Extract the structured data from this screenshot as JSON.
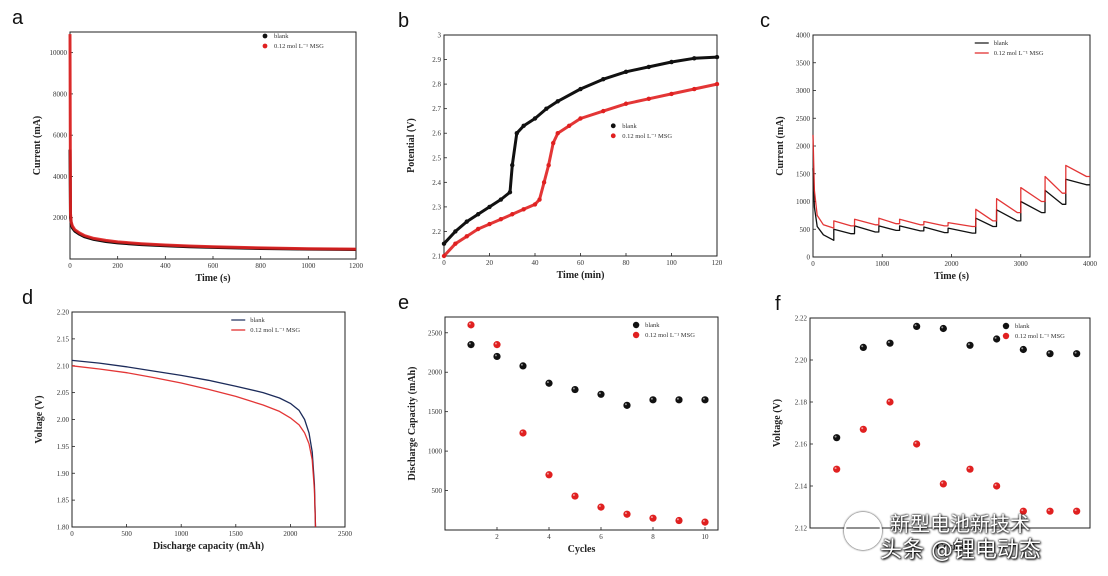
{
  "chart_data": [
    {
      "panel": "a",
      "type": "line",
      "xlabel": "Time (s)",
      "ylabel": "Current (mA)",
      "xlim": [
        0,
        1200
      ],
      "ylim": [
        0,
        11000
      ],
      "xticks": [
        0,
        200,
        400,
        600,
        800,
        1000,
        1200
      ],
      "yticks": [
        2000,
        4000,
        6000,
        8000,
        10000
      ],
      "legend": [
        "blank",
        "0.12 mol L⁻¹ MSG"
      ],
      "legend_position": "top-right",
      "series": [
        {
          "name": "blank",
          "color": "#111111",
          "style": "line",
          "x": [
            0,
            2,
            5,
            10,
            20,
            40,
            60,
            100,
            150,
            200,
            300,
            400,
            500,
            600,
            800,
            1000,
            1200
          ],
          "y": [
            5300,
            2000,
            1700,
            1500,
            1350,
            1200,
            1080,
            950,
            850,
            780,
            700,
            640,
            590,
            560,
            510,
            480,
            460
          ]
        },
        {
          "name": "0.12 mol L⁻¹ MSG",
          "color": "#e02020",
          "style": "line",
          "x": [
            0,
            2,
            5,
            10,
            20,
            40,
            60,
            100,
            150,
            200,
            300,
            400,
            500,
            600,
            800,
            1000,
            1200
          ],
          "y": [
            10900,
            2200,
            1800,
            1600,
            1420,
            1260,
            1140,
            1000,
            900,
            830,
            740,
            680,
            630,
            590,
            540,
            500,
            480
          ]
        }
      ]
    },
    {
      "panel": "b",
      "type": "line",
      "xlabel": "Time (min)",
      "ylabel": "Potential (V)",
      "xlim": [
        0,
        120
      ],
      "ylim": [
        2.1,
        3.0
      ],
      "xticks": [
        0,
        20,
        40,
        60,
        80,
        100,
        120
      ],
      "yticks": [
        2.1,
        2.2,
        2.3,
        2.4,
        2.5,
        2.6,
        2.7,
        2.8,
        2.9,
        3.0
      ],
      "legend": [
        "blank",
        "0.12 mol L⁻¹ MSG"
      ],
      "legend_position": "center-right",
      "series": [
        {
          "name": "blank",
          "color": "#111111",
          "x": [
            0,
            5,
            10,
            15,
            20,
            25,
            29,
            30,
            32,
            35,
            40,
            45,
            50,
            60,
            70,
            80,
            90,
            100,
            110,
            120
          ],
          "y": [
            2.15,
            2.2,
            2.24,
            2.27,
            2.3,
            2.33,
            2.36,
            2.47,
            2.6,
            2.63,
            2.66,
            2.7,
            2.73,
            2.78,
            2.82,
            2.85,
            2.87,
            2.89,
            2.905,
            2.91
          ]
        },
        {
          "name": "0.12 mol L⁻¹ MSG",
          "color": "#e02020",
          "x": [
            0,
            5,
            10,
            15,
            20,
            25,
            30,
            35,
            40,
            42,
            44,
            46,
            48,
            50,
            55,
            60,
            70,
            80,
            90,
            100,
            110,
            120
          ],
          "y": [
            2.1,
            2.15,
            2.18,
            2.21,
            2.23,
            2.25,
            2.27,
            2.29,
            2.31,
            2.33,
            2.4,
            2.47,
            2.56,
            2.6,
            2.63,
            2.66,
            2.69,
            2.72,
            2.74,
            2.76,
            2.78,
            2.8
          ]
        }
      ]
    },
    {
      "panel": "c",
      "type": "line",
      "xlabel": "Time (s)",
      "ylabel": "Current (mA)",
      "xlim": [
        0,
        4000
      ],
      "ylim": [
        0,
        4000
      ],
      "xticks": [
        0,
        1000,
        2000,
        3000,
        4000
      ],
      "yticks": [
        0,
        500,
        1000,
        1500,
        2000,
        2500,
        3000,
        3500,
        4000
      ],
      "legend": [
        "blank",
        "0.12 mol L⁻¹ MSG"
      ],
      "legend_position": "top-right",
      "series": [
        {
          "name": "blank",
          "color": "#111111",
          "x": [
            0,
            20,
            60,
            150,
            300,
            301,
            550,
            600,
            601,
            900,
            950,
            951,
            1200,
            1250,
            1251,
            1550,
            1600,
            1601,
            1900,
            1950,
            1951,
            2300,
            2350,
            2351,
            2600,
            2650,
            2651,
            2950,
            3000,
            3001,
            3300,
            3350,
            3351,
            3600,
            3650,
            3651,
            3950,
            4000
          ],
          "y": [
            1600,
            900,
            550,
            400,
            300,
            500,
            420,
            420,
            560,
            450,
            450,
            560,
            480,
            480,
            560,
            470,
            470,
            540,
            440,
            440,
            520,
            430,
            430,
            700,
            550,
            550,
            850,
            650,
            650,
            1000,
            800,
            800,
            1200,
            950,
            950,
            1400,
            1300,
            1300
          ]
        },
        {
          "name": "0.12 mol L⁻¹ MSG",
          "color": "#e02020",
          "x": [
            0,
            20,
            60,
            150,
            300,
            301,
            550,
            600,
            601,
            900,
            950,
            951,
            1200,
            1250,
            1251,
            1550,
            1600,
            1601,
            1900,
            1950,
            1951,
            2300,
            2350,
            2351,
            2600,
            2650,
            2651,
            2950,
            3000,
            3001,
            3300,
            3350,
            3351,
            3600,
            3650,
            3651,
            3950,
            4000
          ],
          "y": [
            2200,
            1200,
            750,
            580,
            520,
            650,
            560,
            560,
            680,
            580,
            580,
            700,
            600,
            600,
            680,
            580,
            580,
            640,
            560,
            560,
            620,
            550,
            550,
            860,
            650,
            650,
            1050,
            800,
            800,
            1250,
            1000,
            1000,
            1450,
            1150,
            1150,
            1650,
            1450,
            1450
          ]
        }
      ]
    },
    {
      "panel": "d",
      "type": "line",
      "xlabel": "Discharge capacity (mAh)",
      "ylabel": "Voltage (V)",
      "xlim": [
        0,
        2500
      ],
      "ylim": [
        1.8,
        2.2
      ],
      "xticks": [
        0,
        500,
        1000,
        1500,
        2000,
        2500
      ],
      "yticks": [
        1.8,
        1.85,
        1.9,
        1.95,
        2.0,
        2.05,
        2.1,
        2.15,
        2.2
      ],
      "ytick_labels": [
        "1.80",
        "1.85",
        "1.90",
        "1.95",
        "2.00",
        "2.05",
        "2.10",
        "2.15",
        "2.20"
      ],
      "legend": [
        "blank",
        "0.12 mol L⁻¹ MSG"
      ],
      "legend_position": "top-right",
      "series": [
        {
          "name": "blank",
          "color": "#1c2b5a",
          "x": [
            0,
            250,
            500,
            750,
            1000,
            1250,
            1500,
            1750,
            1900,
            2000,
            2080,
            2130,
            2170,
            2200,
            2220,
            2230
          ],
          "y": [
            2.11,
            2.105,
            2.098,
            2.09,
            2.082,
            2.073,
            2.062,
            2.05,
            2.04,
            2.03,
            2.017,
            2.0,
            1.975,
            1.94,
            1.88,
            1.8
          ]
        },
        {
          "name": "0.12 mol L⁻¹ MSG",
          "color": "#e02020",
          "x": [
            0,
            250,
            500,
            750,
            1000,
            1250,
            1500,
            1750,
            1900,
            2000,
            2080,
            2130,
            2170,
            2200,
            2220,
            2230
          ],
          "y": [
            2.1,
            2.094,
            2.087,
            2.078,
            2.068,
            2.056,
            2.043,
            2.027,
            2.015,
            2.003,
            1.99,
            1.975,
            1.955,
            1.925,
            1.87,
            1.8
          ]
        }
      ]
    },
    {
      "panel": "e",
      "type": "scatter",
      "xlabel": "Cycles",
      "ylabel": "Discharge Capacity (mAh)",
      "xlim": [
        0,
        10.5
      ],
      "ylim": [
        0,
        2700
      ],
      "xticks": [
        2,
        4,
        6,
        8,
        10
      ],
      "yticks": [
        500,
        1000,
        1500,
        2000,
        2500
      ],
      "legend": [
        "blank",
        "0.12 mol L⁻¹ MSG"
      ],
      "legend_position": "top-right",
      "categories": [
        1,
        2,
        3,
        4,
        5,
        6,
        7,
        8,
        9,
        10
      ],
      "series": [
        {
          "name": "blank",
          "color": "#111111",
          "values": [
            2350,
            2200,
            2080,
            1860,
            1780,
            1720,
            1580,
            1650,
            1650,
            1650
          ]
        },
        {
          "name": "0.12 mol L⁻¹ MSG",
          "color": "#e02020",
          "values": [
            2600,
            2350,
            1230,
            700,
            430,
            290,
            200,
            150,
            120,
            100
          ]
        }
      ]
    },
    {
      "panel": "f",
      "type": "scatter",
      "xlabel": "Cycles",
      "ylabel": "Voltage (V)",
      "xlim": [
        0,
        10.5
      ],
      "ylim": [
        2.12,
        2.22
      ],
      "yticks": [
        2.12,
        2.14,
        2.16,
        2.18,
        2.2,
        2.22
      ],
      "ytick_labels": [
        "2.12",
        "2.14",
        "2.16",
        "2.18",
        "2.20",
        "2.22"
      ],
      "legend": [
        "blank",
        "0.12 mol L⁻¹ MSG"
      ],
      "legend_position": "top-right",
      "categories": [
        1,
        2,
        3,
        4,
        5,
        6,
        7,
        8,
        9,
        10
      ],
      "series": [
        {
          "name": "blank",
          "color": "#111111",
          "values": [
            2.163,
            2.206,
            2.208,
            2.216,
            2.215,
            2.207,
            2.21,
            2.205,
            2.203,
            2.203
          ]
        },
        {
          "name": "0.12 mol L⁻¹ MSG",
          "color": "#e02020",
          "values": [
            2.148,
            2.167,
            2.18,
            2.16,
            2.141,
            2.148,
            2.14,
            2.128,
            2.128,
            2.128
          ]
        }
      ]
    }
  ],
  "watermark": {
    "top_line": "新型电池新技术",
    "bottom_line": "头条 @锂电动态"
  }
}
